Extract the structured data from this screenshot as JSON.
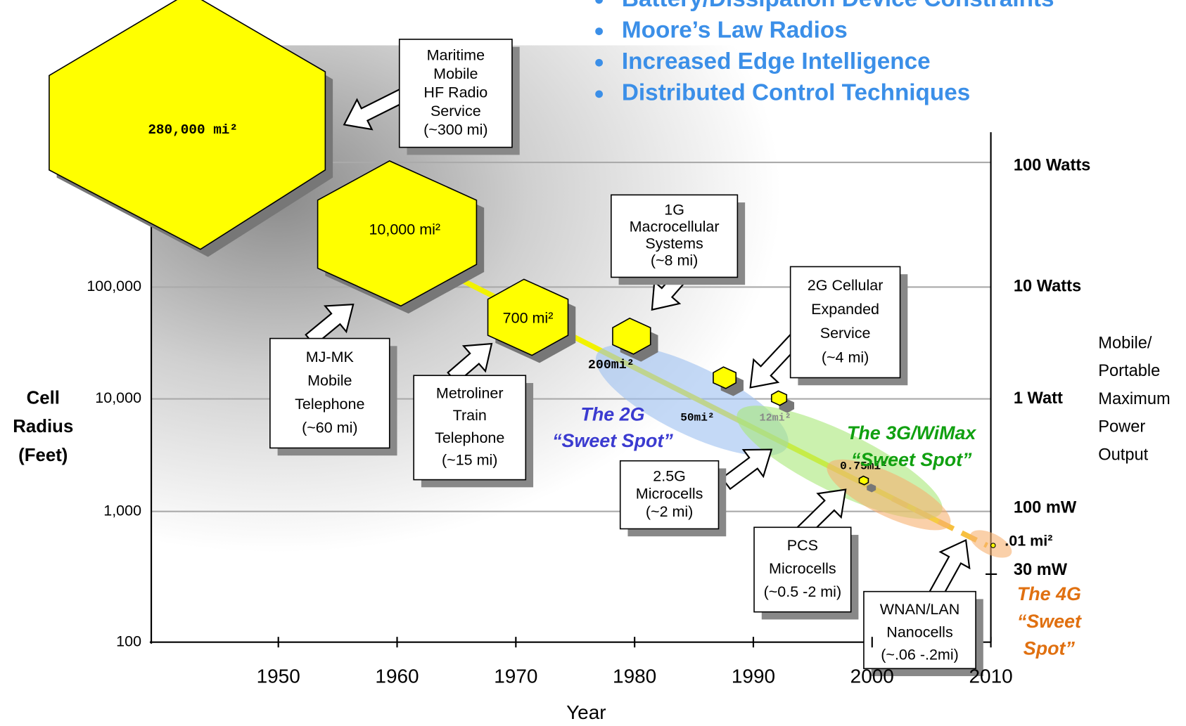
{
  "bullets": [
    "Battery/Dissipation Device Constraints",
    "Moore’s Law Radios",
    "Increased Edge Intelligence",
    "Distributed Control Techniques"
  ],
  "left_axis": {
    "title_lines": [
      "Cell",
      "Radius",
      "(Feet)"
    ],
    "ticks": [
      "100,000",
      "10,000",
      "1,000",
      "100"
    ]
  },
  "x_axis": {
    "title": "Year",
    "ticks": [
      "1950",
      "1960",
      "1970",
      "1980",
      "1990",
      "2000",
      "2010"
    ]
  },
  "right_axis": {
    "ticks": [
      "100 Watts",
      "10 Watts",
      "1 Watt",
      "100 mW",
      "30 mW"
    ],
    "title_lines": [
      "Mobile/",
      "Portable",
      "Maximum",
      "Power",
      "Output"
    ]
  },
  "cells": [
    "280,000 mi²",
    "10,000 mi²",
    "700 mi²",
    "200mi²",
    "50mi²",
    "12mi²",
    "0.75mi²",
    ".01 mi²"
  ],
  "callouts": [
    {
      "lines": [
        "Maritime",
        "Mobile",
        "HF Radio",
        "Service",
        "(~300 mi)"
      ]
    },
    {
      "lines": [
        "MJ-MK",
        "Mobile",
        "Telephone",
        "(~60 mi)"
      ]
    },
    {
      "lines": [
        "Metroliner",
        "Train",
        "Telephone",
        "(~15 mi)"
      ]
    },
    {
      "lines": [
        "1G",
        "Macrocellular",
        "Systems",
        "(~8 mi)"
      ]
    },
    {
      "lines": [
        "2G Cellular",
        "Expanded",
        "Service",
        "(~4 mi)"
      ]
    },
    {
      "lines": [
        "2.5G",
        "Microcells",
        "(~2 mi)"
      ]
    },
    {
      "lines": [
        "PCS",
        "Microcells",
        "(~0.5 -2 mi)"
      ]
    },
    {
      "lines": [
        "WNAN/LAN",
        "Nanocells",
        "(~.06 -.2mi)"
      ]
    }
  ],
  "sweet_spots": [
    {
      "lines": [
        "The 2G",
        "“Sweet Spot”"
      ]
    },
    {
      "lines": [
        "The 3G/WiMax",
        "“Sweet Spot”"
      ]
    },
    {
      "lines": [
        "The 4G",
        "“Sweet",
        "Spot”"
      ]
    }
  ]
}
